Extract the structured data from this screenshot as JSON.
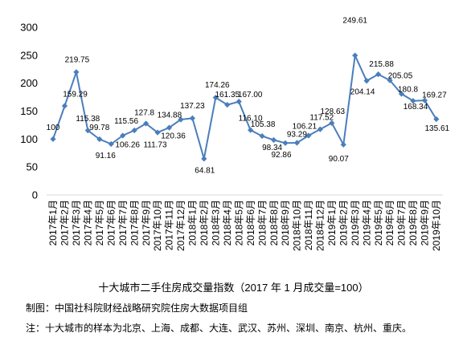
{
  "chart_data": {
    "type": "line",
    "title": "十大城市二手住房成交量指数（2017 年 1 月成交量=100）",
    "categories": [
      "2017年1月",
      "2017年2月",
      "2017年3月",
      "2017年4月",
      "2017年5月",
      "2017年6月",
      "2017年7月",
      "2017年8月",
      "2017年9月",
      "2017年10月",
      "2017年11月",
      "2017年12月",
      "2018年1月",
      "2018年2月",
      "2018年3月",
      "2018年4月",
      "2018年5月",
      "2018年6月",
      "2018年7月",
      "2018年8月",
      "2018年9月",
      "2018年10月",
      "2018年11月",
      "2018年12月",
      "2019年1月",
      "2019年2月",
      "2019年3月",
      "2019年4月",
      "2019年5月",
      "2019年6月",
      "2019年7月",
      "2019年8月",
      "2019年9月",
      "2019年10月"
    ],
    "series": [
      {
        "values": [
          100,
          159.29,
          219.75,
          115.38,
          99.78,
          91.16,
          106.26,
          115.56,
          127.8,
          111.73,
          120.36,
          134.88,
          137.23,
          64.81,
          174.26,
          161.35,
          167.0,
          116.1,
          105.38,
          98.34,
          92.86,
          93.29,
          106.21,
          117.52,
          128.63,
          90.07,
          249.61,
          204.14,
          215.88,
          205.05,
          180.8,
          168.34,
          169.27,
          135.61
        ],
        "data_labels": [
          "100",
          "159.29",
          "219.75",
          "115.38",
          "99.78",
          "91.16",
          "106.26",
          "115.56",
          "127.8",
          "111.73",
          "120.36",
          "134.88",
          "137.23",
          "64.81",
          "174.26",
          "161.35",
          "167.00",
          "116.10",
          "105.38",
          "98.34",
          "92.86",
          "93.29",
          "106.21",
          "117.52",
          "128.63",
          "90.07",
          "249.61",
          "204.14",
          "215.88",
          "205.05",
          "180.8",
          "168.34",
          "169.27",
          "135.61"
        ]
      }
    ],
    "ylim": [
      0,
      300
    ],
    "yticks": [
      0,
      50,
      100,
      150,
      200,
      250,
      300
    ],
    "grid": false,
    "legend": "none",
    "line_color": "#4a7ebb"
  },
  "credits": {
    "source": "制图：中国社科院财经战略研究院住房大数据项目组",
    "note": "注：十大城市的样本为北京、上海、成都、大连、武汉、苏州、深圳、南京、杭州、重庆。"
  }
}
